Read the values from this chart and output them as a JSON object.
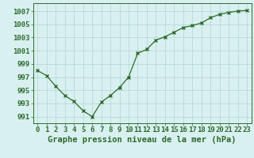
{
  "x": [
    0,
    1,
    2,
    3,
    4,
    5,
    6,
    7,
    8,
    9,
    10,
    11,
    12,
    13,
    14,
    15,
    16,
    17,
    18,
    19,
    20,
    21,
    22,
    23
  ],
  "y": [
    998.0,
    997.2,
    995.6,
    994.2,
    993.3,
    991.9,
    991.0,
    993.2,
    994.2,
    995.4,
    997.0,
    1000.6,
    1001.2,
    1002.6,
    1003.1,
    1003.8,
    1004.5,
    1004.8,
    1005.2,
    1006.0,
    1006.5,
    1006.8,
    1007.0,
    1007.1
  ],
  "line_color": "#2d6a2d",
  "marker": "x",
  "marker_color": "#2d6a2d",
  "bg_color": "#d9f0f0",
  "grid_color": "#aed4d4",
  "xlabel": "Graphe pression niveau de la mer (hPa)",
  "xlabel_color": "#2d6a2d",
  "ylabel_ticks": [
    991,
    993,
    995,
    997,
    999,
    1001,
    1003,
    1005,
    1007
  ],
  "xlim": [
    -0.5,
    23.5
  ],
  "ylim": [
    990.0,
    1008.2
  ],
  "xticks": [
    0,
    1,
    2,
    3,
    4,
    5,
    6,
    7,
    8,
    9,
    10,
    11,
    12,
    13,
    14,
    15,
    16,
    17,
    18,
    19,
    20,
    21,
    22,
    23
  ],
  "tick_color": "#2d6a2d",
  "axis_color": "#2d6a2d",
  "font_size_xlabel": 7.5,
  "font_size_ticks": 6.5
}
